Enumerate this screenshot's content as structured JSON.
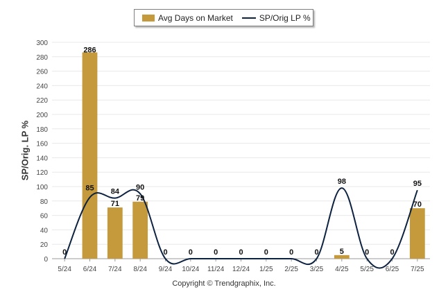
{
  "chart_data": {
    "type": "bar",
    "categories": [
      "5/24",
      "6/24",
      "7/24",
      "8/24",
      "9/24",
      "10/24",
      "11/24",
      "12/24",
      "1/25",
      "2/25",
      "3/25",
      "4/25",
      "5/25",
      "6/25",
      "7/25"
    ],
    "series": [
      {
        "name": "Avg Days on Market",
        "type": "bar",
        "color": "#c49a3c",
        "values": [
          0,
          286,
          71,
          79,
          0,
          0,
          0,
          0,
          0,
          0,
          0,
          5,
          0,
          0,
          70
        ]
      },
      {
        "name": "SP/Orig LP %",
        "type": "line",
        "color": "#0d2240",
        "values": [
          0,
          85,
          84,
          90,
          0,
          0,
          0,
          0,
          0,
          0,
          0,
          98,
          0,
          0,
          95
        ]
      }
    ],
    "ylabel": "SP/Orig. LP %",
    "ylim": [
      0,
      300
    ],
    "yticks": [
      0,
      20,
      40,
      60,
      80,
      100,
      120,
      140,
      160,
      180,
      200,
      220,
      240,
      260,
      280,
      300
    ],
    "grid": true,
    "legend_position": "top-center"
  },
  "copyright": "Copyright © Trendgraphix, Inc."
}
